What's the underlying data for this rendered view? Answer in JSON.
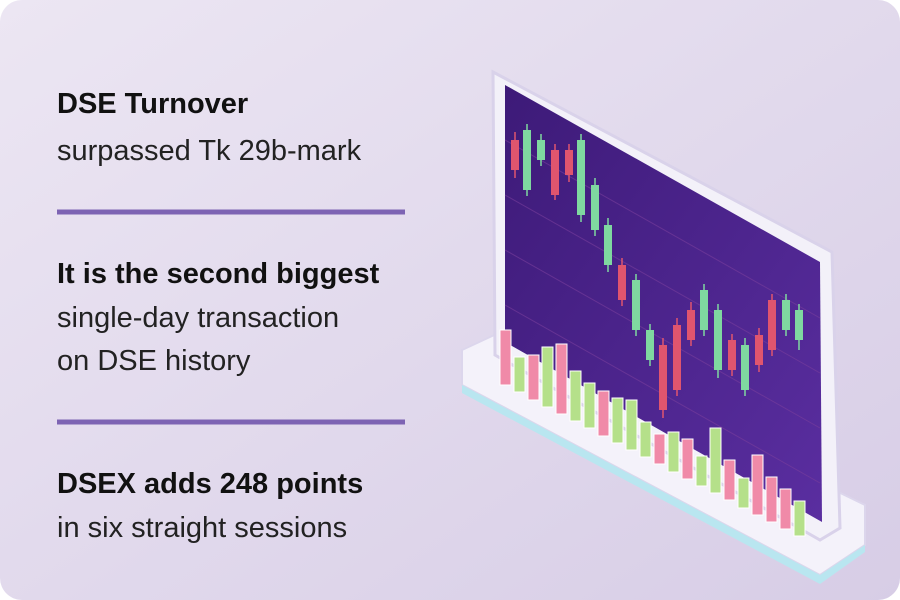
{
  "items": [
    {
      "heading": "DSE Turnover",
      "body": [
        "surpassed Tk 29b-mark"
      ]
    },
    {
      "heading": "It is the second biggest",
      "body": [
        "single-day transaction",
        "on DSE history"
      ]
    },
    {
      "heading": "DSEX adds 248 points",
      "body": [
        "in six straight sessions"
      ]
    }
  ]
}
